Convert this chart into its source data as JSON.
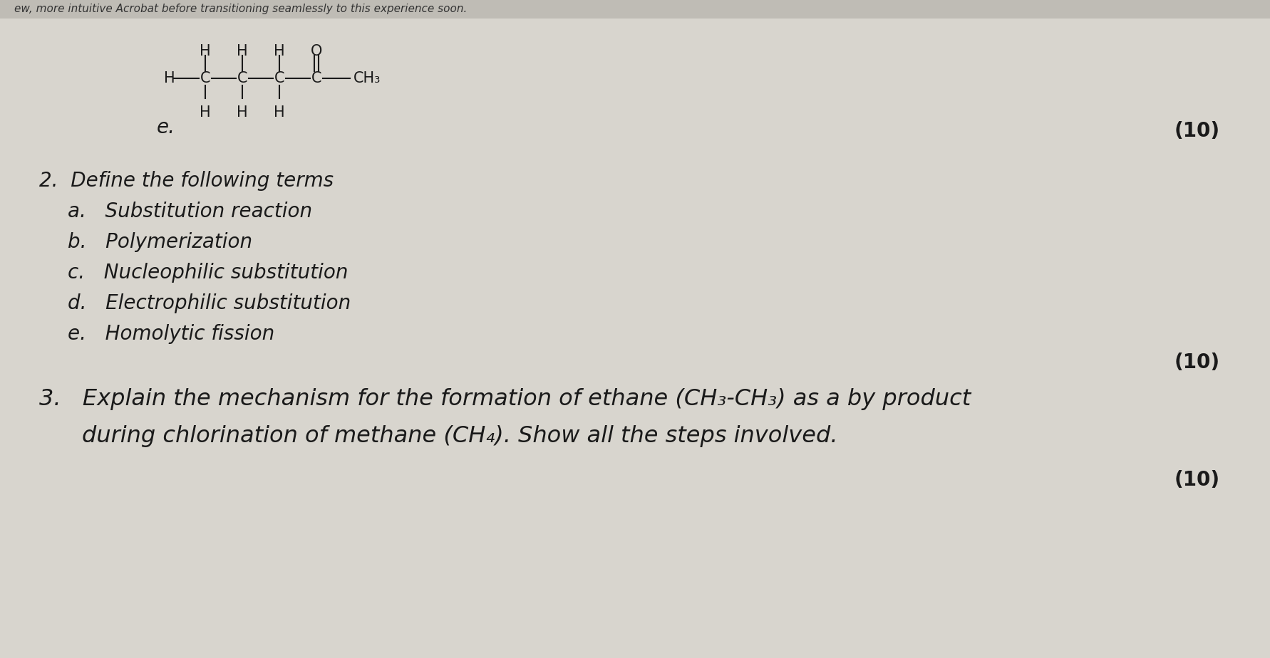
{
  "bg_color": "#d8d5ce",
  "text_color": "#1a1a1a",
  "top_bar_text": "ew, more intuitive Acrobat before transitioning seamlessly to this experience soon.",
  "top_bar_bg": "#c8c5be",
  "structural_formula_label": "e.",
  "mark1": "(10)",
  "mark2": "(10)",
  "mark3": "(10)",
  "q2_heading": "2.  Define the following terms",
  "q2a": "a.   Substitution reaction",
  "q2b": "b.   Polymerization",
  "q2c": "c.   Nucleophilic substitution",
  "q2d": "d.   Electrophilic substitution",
  "q2e": "e.   Homolytic fission",
  "q3_line1": "3.   Explain the mechanism for the formation of ethane (CH₃-CH₃) as a by product",
  "q3_line2": "during chlorination of methane (CH₄). Show all the steps involved.",
  "font_size_body": 20,
  "font_size_mark": 20,
  "font_size_struct": 15
}
